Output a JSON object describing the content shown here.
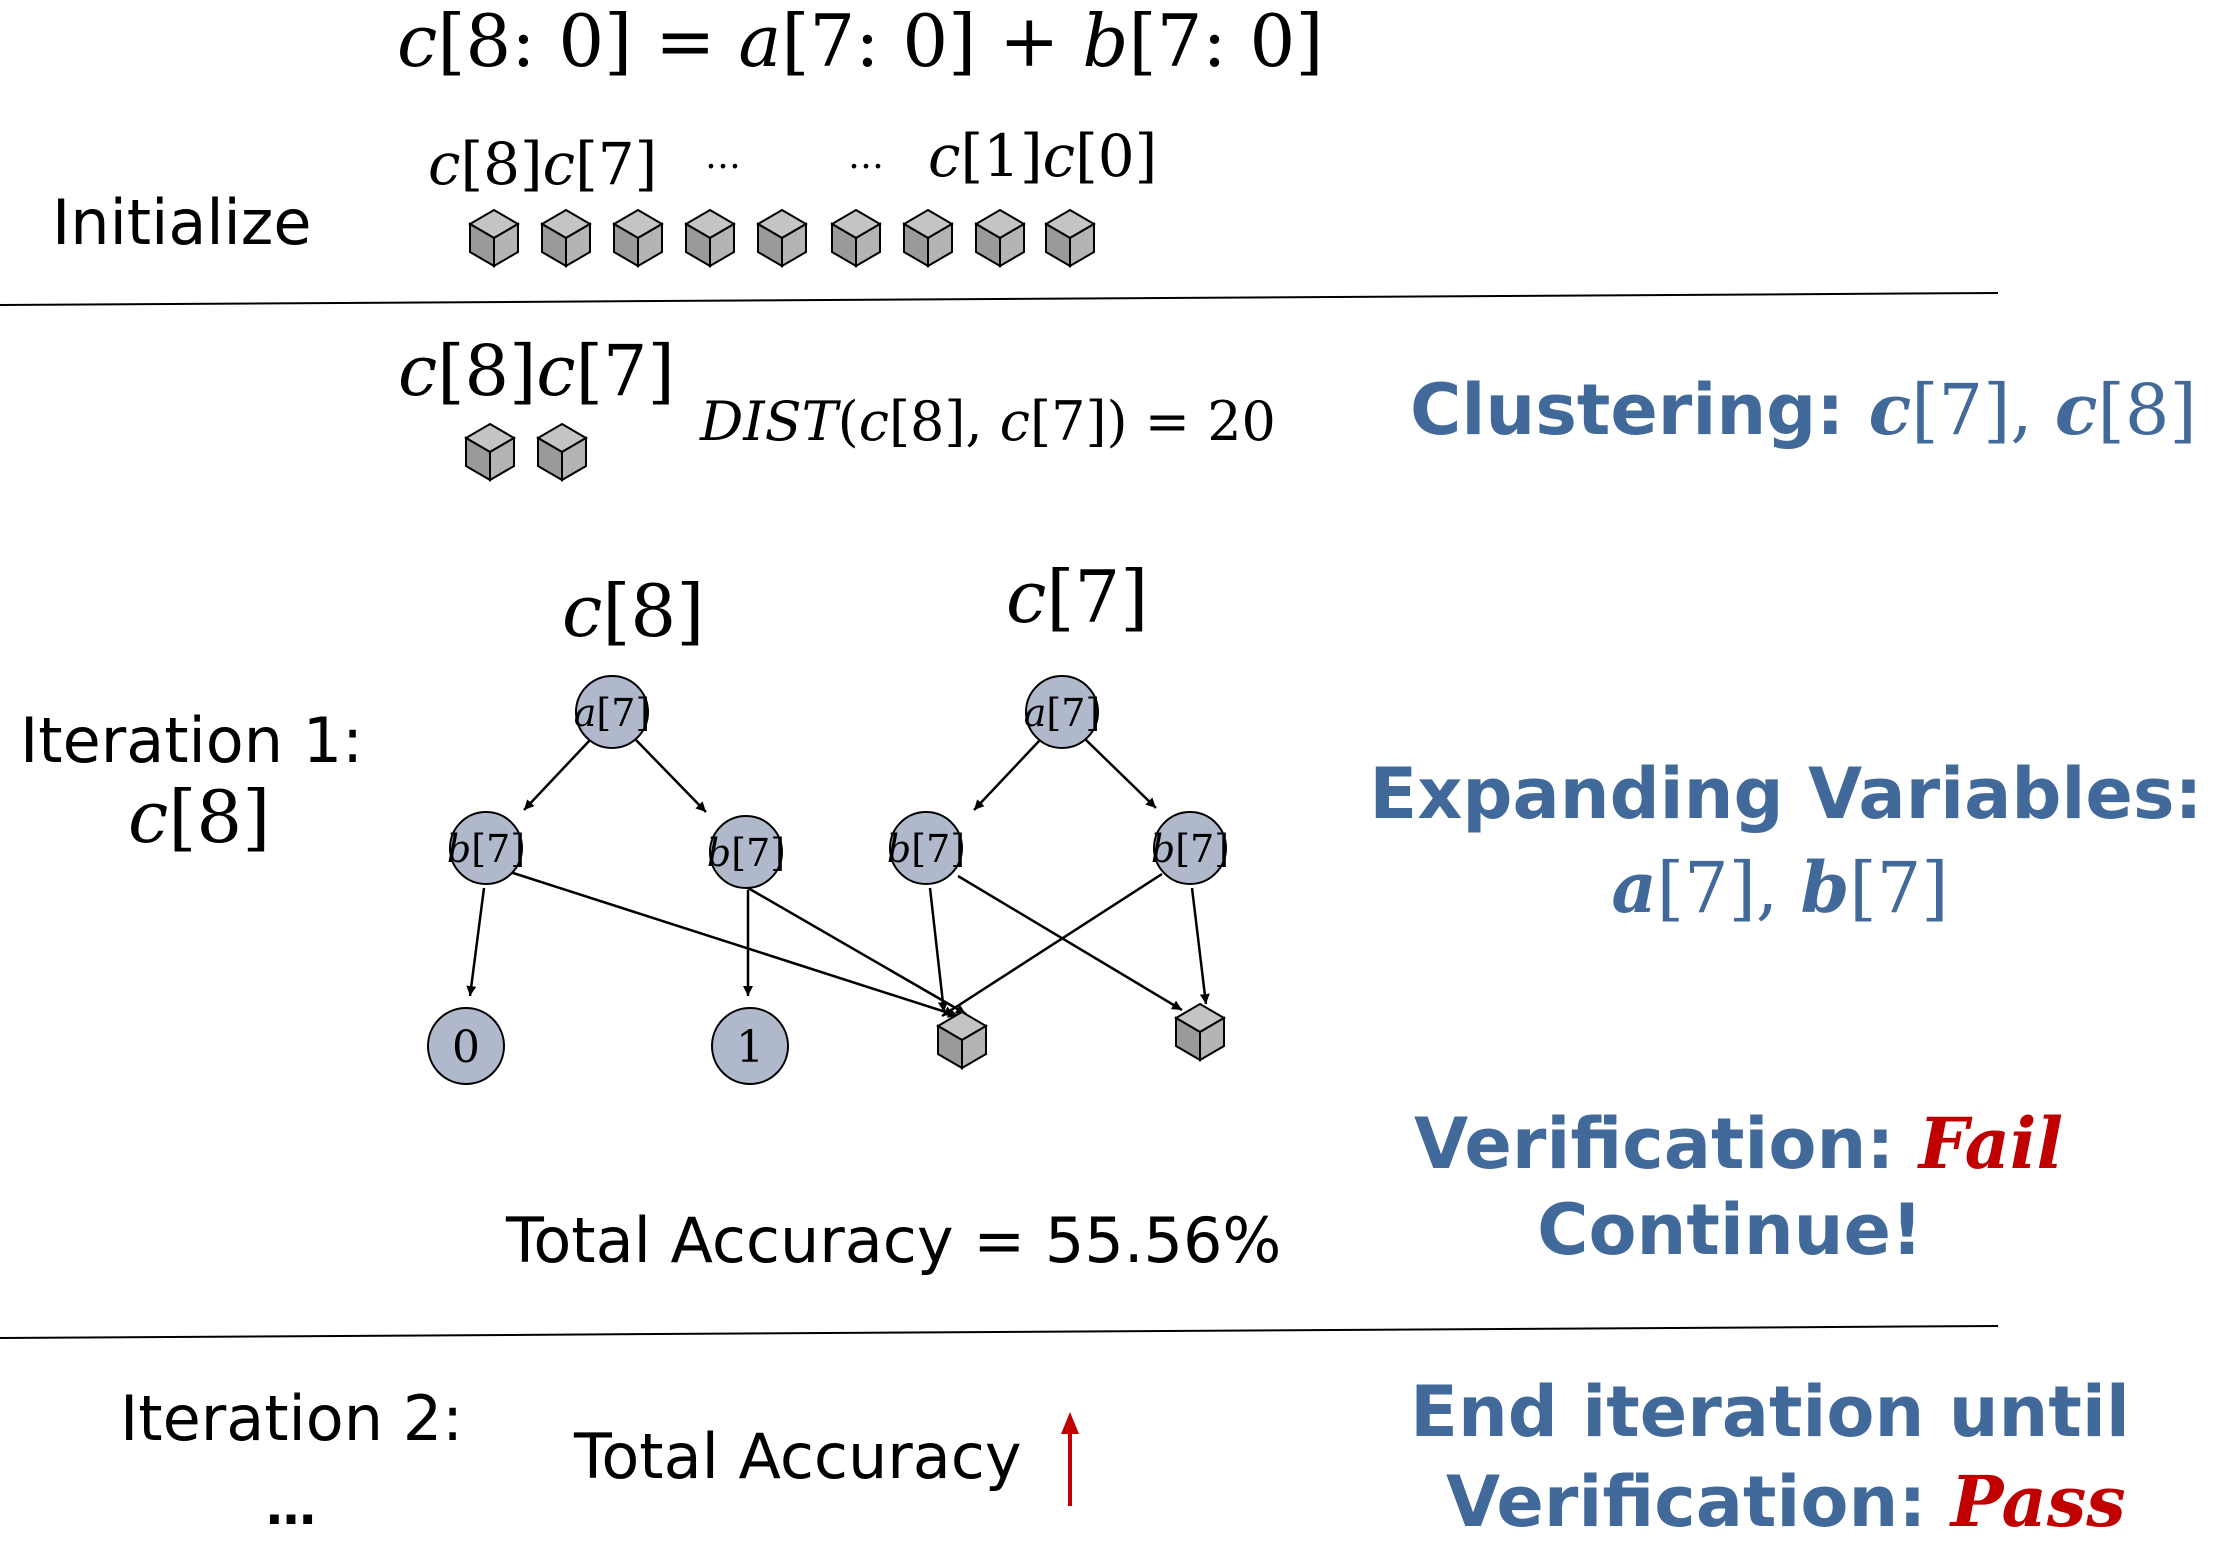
{
  "equation": {
    "c": "c",
    "lhs_range": "[8: 0]",
    "eq": " = ",
    "a": "a",
    "a_range": "[7: 0]",
    "plus": " + ",
    "b": "b",
    "b_range": "[7: 0]"
  },
  "initialize": {
    "label": "Initialize",
    "bits_left": {
      "c1": "c",
      "r1": "[8]",
      "c2": "c",
      "r2": "[7]"
    },
    "ellipsis_1": "…",
    "ellipsis_2": "…",
    "bits_right": {
      "c1": "c",
      "r1": "[1]",
      "c2": "c",
      "r2": "[0]"
    },
    "cube_count": 9
  },
  "clustering": {
    "pair": {
      "c1": "c",
      "r1": "[8]",
      "c2": "c",
      "r2": "[7]"
    },
    "dist": {
      "fn": "DIST",
      "args_open": "(",
      "c1": "c",
      "r1": "[8], ",
      "c2": "c",
      "r2": "[7]",
      "close": ") = 20"
    },
    "right_label": "Clustering: ",
    "right_vars": {
      "c1": "c",
      "r1": "[7], ",
      "c2": "c",
      "r2": "[8]"
    }
  },
  "iteration1": {
    "label_line1": "Iteration 1:",
    "label_line2": {
      "c": "c",
      "r": "[8]"
    },
    "tree_left_title": {
      "c": "c",
      "r": "[8]"
    },
    "tree_right_title": {
      "c": "c",
      "r": "[7]"
    },
    "node_a": {
      "v": "a",
      "r": "[7]"
    },
    "node_b": {
      "v": "b",
      "r": "[7]"
    },
    "terminal_0": "0",
    "terminal_1": "1",
    "expanding_label": "Expanding Variables:",
    "expanding_vars": {
      "a": "a",
      "ar": "[7], ",
      "b": "b",
      "br": "[7]"
    },
    "total_accuracy": "Total Accuracy = 55.56%",
    "verification_label": "Verification: ",
    "verification_result": "Fail",
    "continue": "Continue!"
  },
  "iteration2": {
    "label_line1": "Iteration 2:",
    "label_line2": "…",
    "total_accuracy": "Total Accuracy",
    "end_line1": "End iteration until",
    "end_line2_label": "Verification: ",
    "end_line2_result": "Pass"
  },
  "colors": {
    "accent_blue": "#41699a",
    "accent_red": "#c00000",
    "node_fill": "#b0b8cb",
    "cube_fill": "#a6a6a6"
  }
}
